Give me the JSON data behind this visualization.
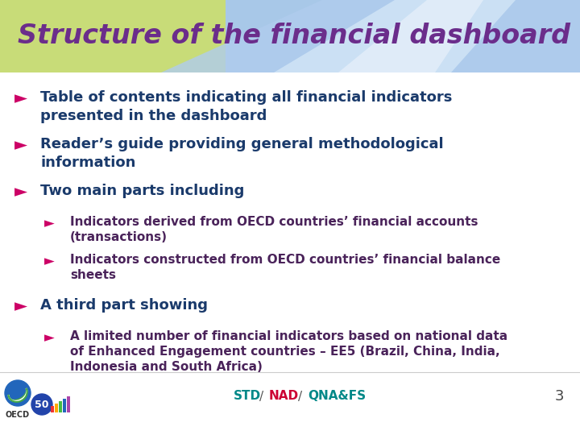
{
  "title": "Structure of the financial dashboard",
  "title_color": "#6B2D8B",
  "title_fontsize": 24,
  "title_fontstyle": "italic",
  "title_fontweight": "bold",
  "bg_color": "#ffffff",
  "header_yellow_color": "#c8dc78",
  "header_blue_color": "#a8c8e8",
  "header_lightblue_color": "#c0d8f0",
  "bullet_arrow": "►",
  "main_bullet_color": "#cc0066",
  "sub_bullet_color": "#cc0066",
  "main_text_color": "#1a3a6b",
  "sub_text_color": "#4a235a",
  "footer_std_color": "#008888",
  "footer_nad_color": "#cc0033",
  "footer_qna_color": "#008888",
  "footer_slash_color": "#555555",
  "page_number": "3",
  "page_color": "#444444",
  "bullets": [
    {
      "level": 0,
      "text": "Table of contents indicating all financial indicators\npresented in the dashboard",
      "text_color": "#1a3a6b"
    },
    {
      "level": 0,
      "text": "Reader’s guide providing general methodological\ninformation",
      "text_color": "#1a3a6b"
    },
    {
      "level": 0,
      "text": "Two main parts including",
      "text_color": "#1a3a6b"
    },
    {
      "level": 1,
      "text": "Indicators derived from OECD countries’ financial accounts\n(transactions)",
      "text_color": "#4a235a"
    },
    {
      "level": 1,
      "text": "Indicators constructed from OECD countries’ financial balance\nsheets",
      "text_color": "#4a235a"
    },
    {
      "level": 0,
      "text": "A third part showing",
      "text_color": "#1a3a6b"
    },
    {
      "level": 1,
      "text": "A limited number of financial indicators based on national data\nof Enhanced Engagement countries – EE5 (Brazil, China, India,\nIndonesia and South Africa)",
      "text_color": "#4a235a"
    }
  ]
}
